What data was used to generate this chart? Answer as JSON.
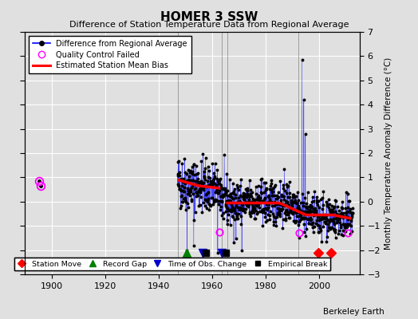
{
  "title": "HOMER 3 SSW",
  "subtitle": "Difference of Station Temperature Data from Regional Average",
  "ylabel_right": "Monthly Temperature Anomaly Difference (°C)",
  "xlim": [
    1890,
    2015
  ],
  "ylim": [
    -3,
    7
  ],
  "yticks": [
    -3,
    -2,
    -1,
    0,
    1,
    2,
    3,
    4,
    5,
    6,
    7
  ],
  "xticks": [
    1900,
    1920,
    1940,
    1960,
    1980,
    2000
  ],
  "bg_color": "#e0e0e0",
  "plot_bg_color": "#e0e0e0",
  "grid_color": "#ffffff",
  "watermark": "Berkeley Earth",
  "seed": 42,
  "qc_years": [
    1895.3,
    1895.9
  ],
  "qc_vals": [
    0.85,
    0.65
  ],
  "outlier_year": 1993.5,
  "outlier_val": 5.85,
  "outlier_prev_val": 4.2,
  "outlier_prev2_val": 2.8,
  "bias_years": [
    1947,
    1955,
    1963,
    1965,
    1975,
    1985,
    1995,
    2005,
    2012
  ],
  "bias_vals": [
    0.9,
    0.65,
    0.55,
    -0.05,
    -0.05,
    -0.05,
    -0.55,
    -0.55,
    -0.7
  ],
  "record_gap_years": [
    1950.5
  ],
  "obs_change_years": [
    1956.5,
    1963.5
  ],
  "emp_break_years": [
    1957.5,
    1965.0
  ],
  "station_move_years": [
    1999.5,
    2004.5
  ],
  "qc_in_data_years": [
    1962.5,
    1992.5,
    2010.5
  ],
  "qc_in_data_vals": [
    -1.25,
    -1.3,
    -1.3
  ]
}
